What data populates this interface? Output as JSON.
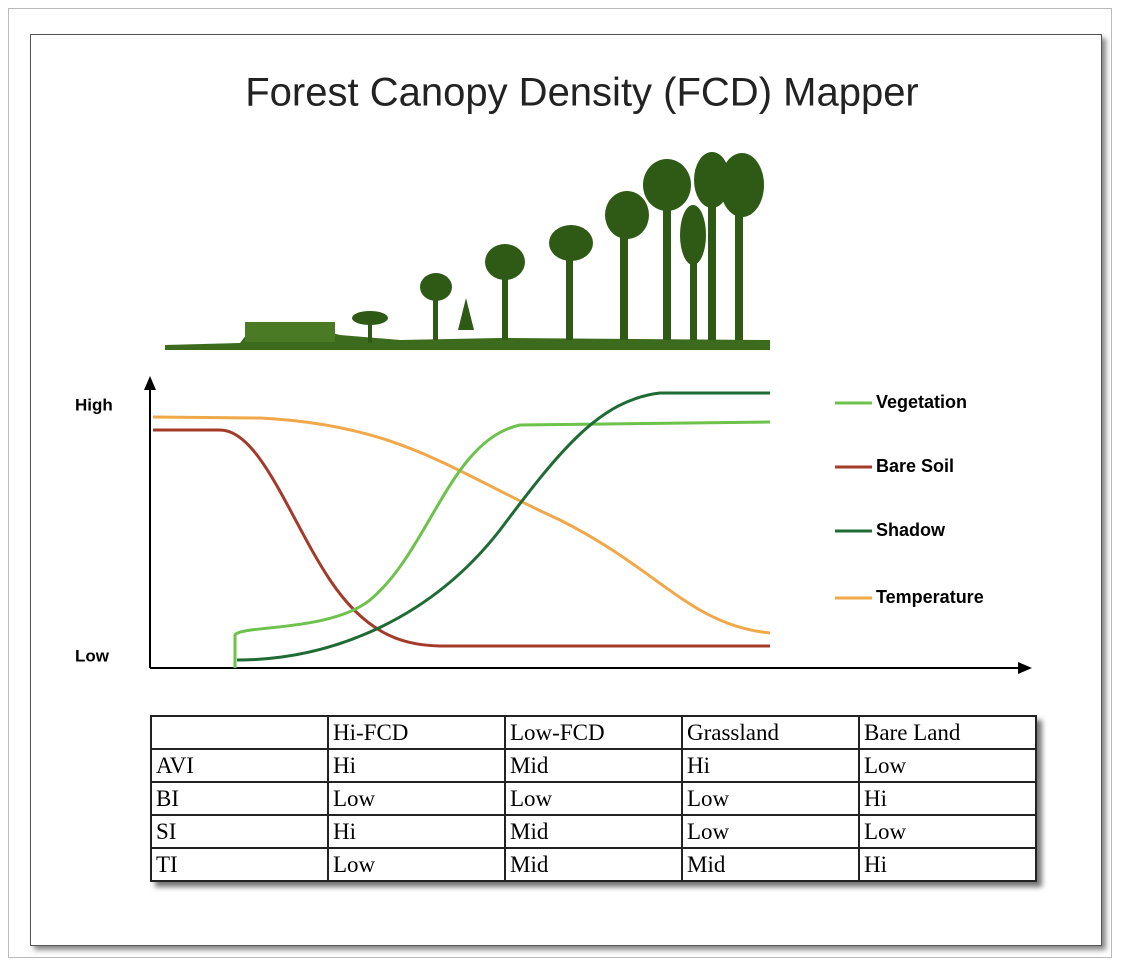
{
  "title": "Forest Canopy Density (FCD) Mapper",
  "chart": {
    "y_high": "High",
    "y_low": "Low",
    "legend": [
      {
        "name": "Vegetation",
        "color": "#6cc24a"
      },
      {
        "name": "Bare Soil",
        "color": "#a33a2a"
      },
      {
        "name": "Shadow",
        "color": "#1e6b35"
      },
      {
        "name": "Temperature",
        "color": "#f0a848"
      }
    ]
  },
  "table": {
    "header": [
      "Hi-FCD",
      "Low-FCD",
      "Grassland",
      "Bare Land"
    ],
    "rows": [
      [
        "AVI",
        "Hi",
        "Mid",
        "Hi",
        "Low"
      ],
      [
        "BI",
        "Low",
        "Low",
        "Low",
        "Hi"
      ],
      [
        "SI",
        "Hi",
        "Mid",
        "Low",
        "Low"
      ],
      [
        "TI",
        "Low",
        "Mid",
        "Mid",
        "Hi"
      ]
    ]
  }
}
